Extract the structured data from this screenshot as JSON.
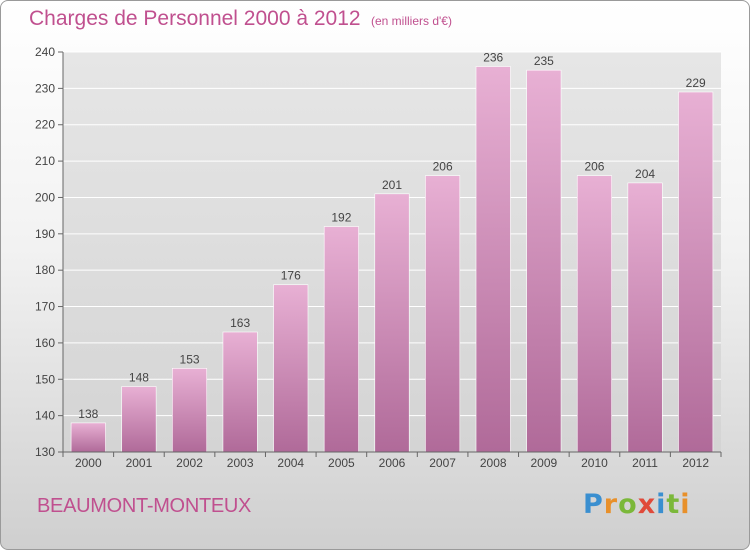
{
  "header": {
    "title": "Charges de Personnel 2000 à 2012",
    "subtitle": "(en milliers d'€)"
  },
  "footer": {
    "city": "BEAUMONT-MONTEUX",
    "logo": {
      "letters": [
        "P",
        "r",
        "o",
        "x",
        "i",
        "t",
        "i"
      ],
      "colors": [
        "#3a8fd0",
        "#e8902a",
        "#7bb83a",
        "#e04a3a",
        "#3a8fd0",
        "#7bb83a",
        "#e8902a"
      ]
    }
  },
  "colors": {
    "bar_light": "#e8b0d4",
    "bar_dark": "#b06a99",
    "axis": "#666666",
    "grid": "#ffffff",
    "text": "#444444",
    "accent": "#c0508f"
  },
  "chart_data": {
    "type": "bar",
    "title": "Charges de Personnel 2000 à 2012",
    "subtitle": "(en milliers d'€)",
    "categories": [
      "2000",
      "2001",
      "2002",
      "2003",
      "2004",
      "2005",
      "2006",
      "2007",
      "2008",
      "2009",
      "2010",
      "2011",
      "2012"
    ],
    "values": [
      138,
      148,
      153,
      163,
      176,
      192,
      201,
      206,
      236,
      235,
      206,
      204,
      229
    ],
    "ylim": [
      130,
      240
    ],
    "yticks": [
      130,
      140,
      150,
      160,
      170,
      180,
      190,
      200,
      210,
      220,
      230,
      240
    ],
    "grid": true,
    "data_labels": true
  }
}
